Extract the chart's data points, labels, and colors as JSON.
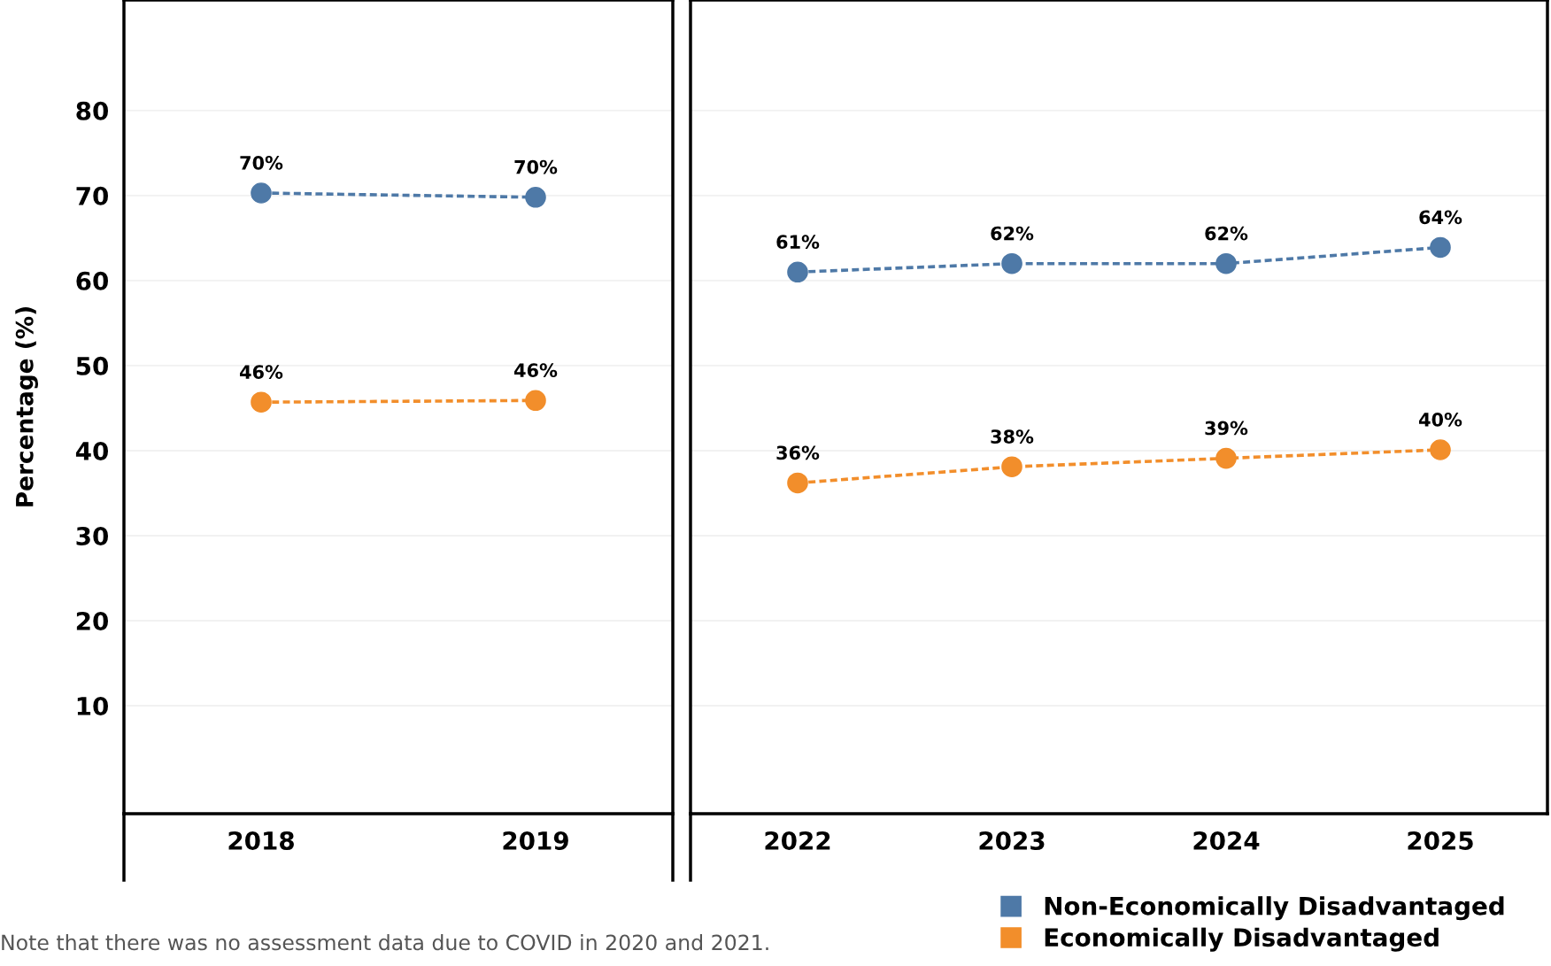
{
  "chart_data": [
    {
      "type": "line",
      "categories": [
        "2018",
        "2019"
      ],
      "ylabel": "Percentage (%)",
      "ylim": [
        -2.7,
        93
      ],
      "yticks": [
        10,
        20,
        30,
        40,
        50,
        60,
        70,
        80
      ],
      "grid": "y",
      "marker": "circle",
      "line_style": "dashed",
      "series": [
        {
          "color": "#4e79a7",
          "values": [
            70.3,
            69.8
          ],
          "value_labels": [
            "70%",
            "70%"
          ]
        },
        {
          "color": "#f28e2b",
          "values": [
            45.7,
            45.9
          ],
          "value_labels": [
            "46%",
            "46%"
          ]
        }
      ],
      "annotations": [
        "Note that there was no assessment data due to COVID in 2020 and 2021."
      ]
    },
    {
      "type": "line",
      "categories": [
        "2022",
        "2023",
        "2024",
        "2025"
      ],
      "ylim": [
        -2.7,
        93
      ],
      "yticks": [
        10,
        20,
        30,
        40,
        50,
        60,
        70,
        80
      ],
      "grid": "y",
      "tick_labels": "x",
      "marker": "circle",
      "line_style": "dashed",
      "legend": "bottom right",
      "series": [
        {
          "name": "Non-Economically Disadvantaged",
          "color": "#4e79a7",
          "values": [
            61.0,
            62.0,
            62.0,
            63.9
          ],
          "value_labels": [
            "61%",
            "62%",
            "62%",
            "64%"
          ]
        },
        {
          "name": "Economically Disadvantaged",
          "color": "#f28e2b",
          "values": [
            36.2,
            38.1,
            39.1,
            40.1
          ],
          "value_labels": [
            "36%",
            "38%",
            "39%",
            "40%"
          ]
        }
      ]
    }
  ]
}
